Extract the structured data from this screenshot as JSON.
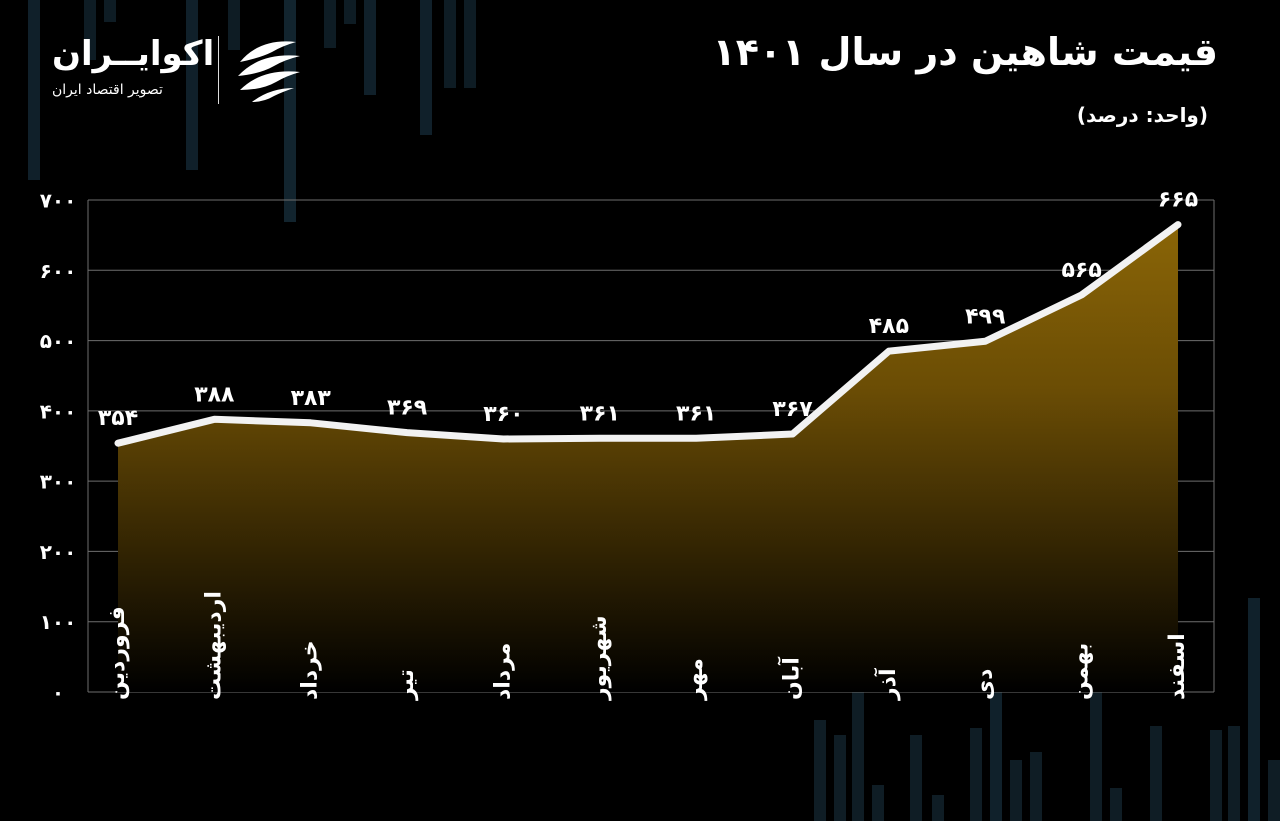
{
  "header": {
    "title": "قیمت شاهین در سال ۱۴۰۱",
    "subtitle": "(واحد: درصد)"
  },
  "brand": {
    "name": "اکوایــران",
    "tagline": "تصویر اقتصاد ایران",
    "logo_icon": "ekoiran-wave-icon"
  },
  "colors": {
    "background": "#000000",
    "area_top": "#8a6506",
    "area_bottom": "#000000",
    "line": "#f2f2f2",
    "text": "#ffffff",
    "grid": "#6e6e6e"
  },
  "chart_data": {
    "type": "area",
    "categories": [
      "فروردین",
      "اردیبهشت",
      "خرداد",
      "تیر",
      "مرداد",
      "شهریور",
      "مهر",
      "آبان",
      "آذر",
      "دی",
      "بهمن",
      "اسفند"
    ],
    "values": [
      354,
      388,
      383,
      369,
      360,
      361,
      361,
      367,
      485,
      499,
      565,
      665
    ],
    "value_labels": [
      "۳۵۴",
      "۳۸۸",
      "۳۸۳",
      "۳۶۹",
      "۳۶۰",
      "۳۶۱",
      "۳۶۱",
      "۳۶۷",
      "۴۸۵",
      "۴۹۹",
      "۵۶۵",
      "۶۶۵"
    ],
    "yticks": [
      0,
      100,
      200,
      300,
      400,
      500,
      600,
      700
    ],
    "ytick_labels": [
      "۰",
      "۱۰۰",
      "۲۰۰",
      "۳۰۰",
      "۴۰۰",
      "۵۰۰",
      "۶۰۰",
      "۷۰۰"
    ],
    "ylim": [
      0,
      700
    ],
    "grid": true,
    "title": "قیمت شاهین در سال ۱۴۰۱",
    "unit": "(واحد: درصد)"
  }
}
